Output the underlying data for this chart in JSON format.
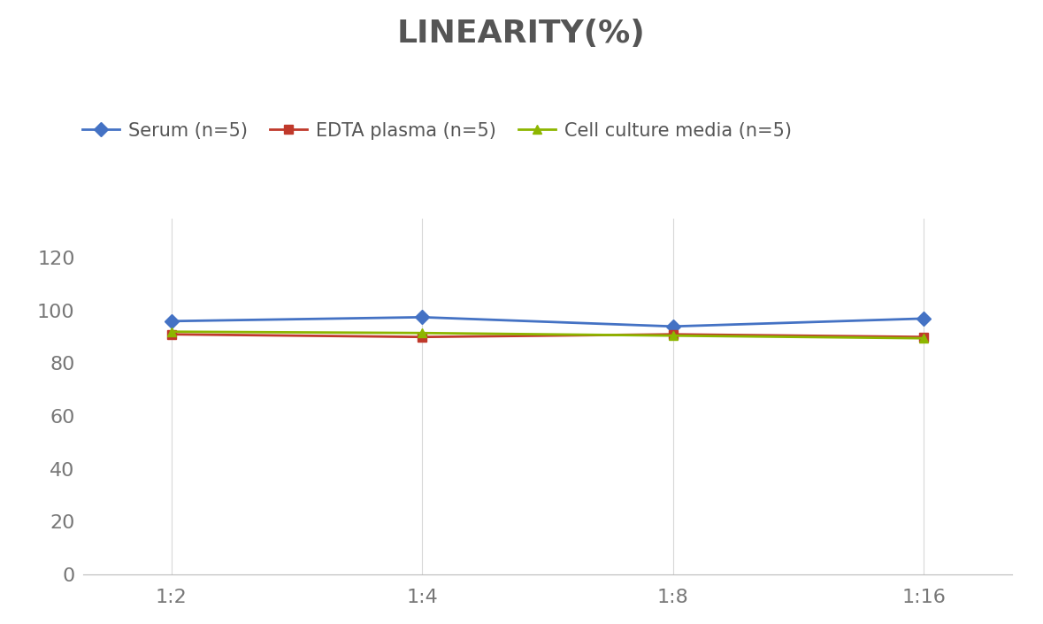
{
  "title": "LINEARITY(%)",
  "x_labels": [
    "1:2",
    "1:4",
    "1:8",
    "1:16"
  ],
  "x_positions": [
    0,
    1,
    2,
    3
  ],
  "series": [
    {
      "name": "Serum (n=5)",
      "values": [
        96,
        97.5,
        94,
        97
      ],
      "color": "#4472C4",
      "marker": "D",
      "linewidth": 2.0,
      "markersize": 8
    },
    {
      "name": "EDTA plasma (n=5)",
      "values": [
        91,
        90,
        91,
        90
      ],
      "color": "#C0392B",
      "marker": "s",
      "linewidth": 2.0,
      "markersize": 7
    },
    {
      "name": "Cell culture media (n=5)",
      "values": [
        92,
        91.5,
        90.5,
        89.5
      ],
      "color": "#8DB600",
      "marker": "^",
      "linewidth": 2.0,
      "markersize": 7
    }
  ],
  "ylim": [
    0,
    135
  ],
  "yticks": [
    0,
    20,
    40,
    60,
    80,
    100,
    120
  ],
  "background_color": "#FFFFFF",
  "grid_color": "#D8D8D8",
  "title_fontsize": 26,
  "tick_fontsize": 16,
  "legend_fontsize": 15
}
